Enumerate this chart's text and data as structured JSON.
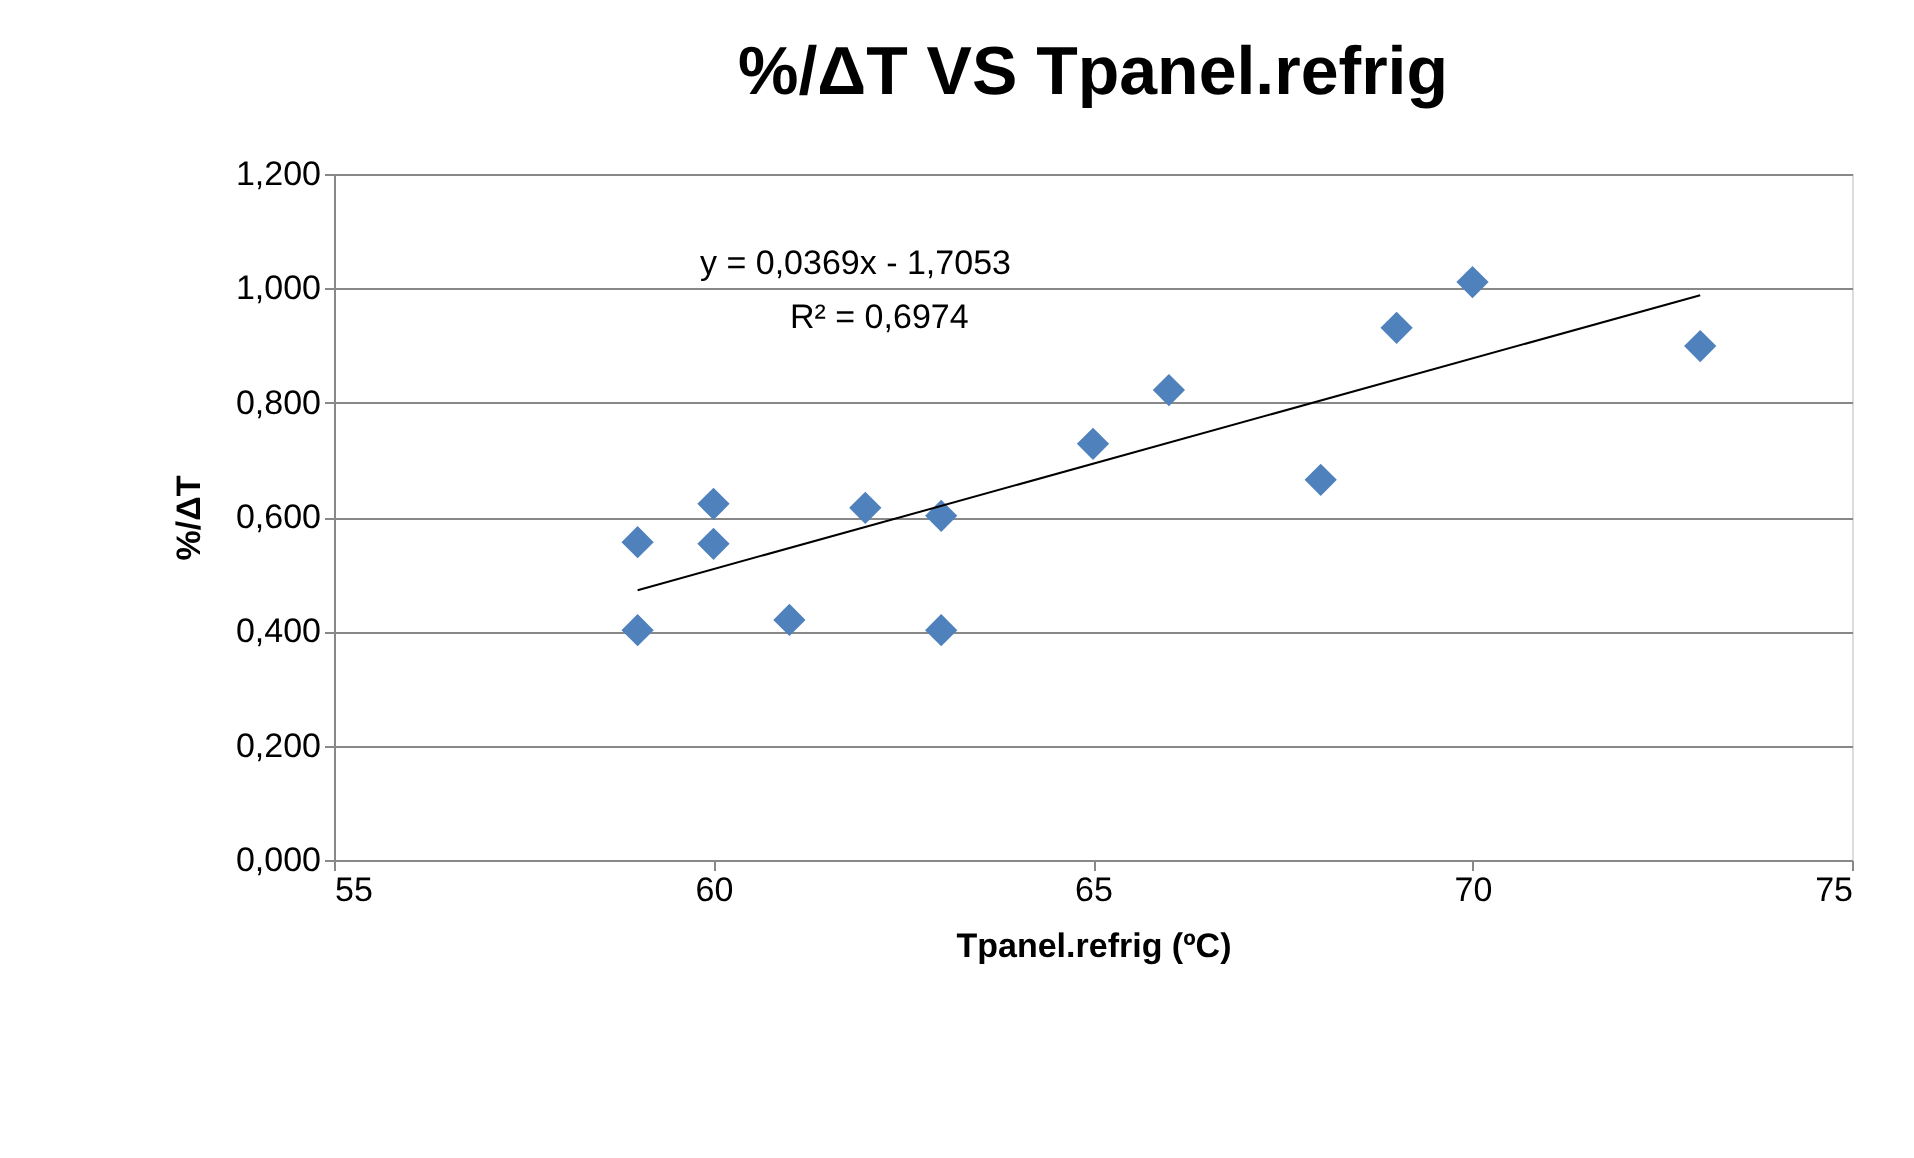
{
  "chart_data": {
    "type": "scatter",
    "title": "%/ΔT VS Tpanel.refrig",
    "xlabel": "Tpanel.refrig (ºC)",
    "ylabel": "%/ΔT",
    "series": [
      {
        "color": "#4f81bd",
        "marker": "diamond",
        "x": [
          59,
          59,
          60,
          60,
          61,
          62,
          63,
          63,
          65,
          66,
          68,
          69,
          70,
          73
        ],
        "values": [
          0.556,
          0.402,
          0.623,
          0.553,
          0.42,
          0.616,
          0.602,
          0.402,
          0.728,
          0.822,
          0.665,
          0.931,
          1.011,
          0.899
        ]
      },
      {
        "type": "line",
        "line_style": "solid",
        "color": "#000000",
        "x": [
          59,
          73
        ],
        "values": [
          0.472,
          0.988
        ]
      }
    ],
    "xlim": [
      55,
      75
    ],
    "xticks": [
      55,
      60,
      65,
      70,
      75
    ],
    "ylim": [
      0,
      1.2
    ],
    "yticks": [
      {
        "value": 0,
        "label": "0,000"
      },
      {
        "value": 0.2,
        "label": "0,200"
      },
      {
        "value": 0.4,
        "label": "0,400"
      },
      {
        "value": 0.6,
        "label": "0,600"
      },
      {
        "value": 0.8,
        "label": "0,800"
      },
      {
        "value": 1.0,
        "label": "1,000"
      },
      {
        "value": 1.2,
        "label": "1,200"
      }
    ],
    "annotations": [
      "y = 0,0369x - 1,7053",
      "R² = 0,6974"
    ],
    "grid": "y",
    "legend": false
  }
}
